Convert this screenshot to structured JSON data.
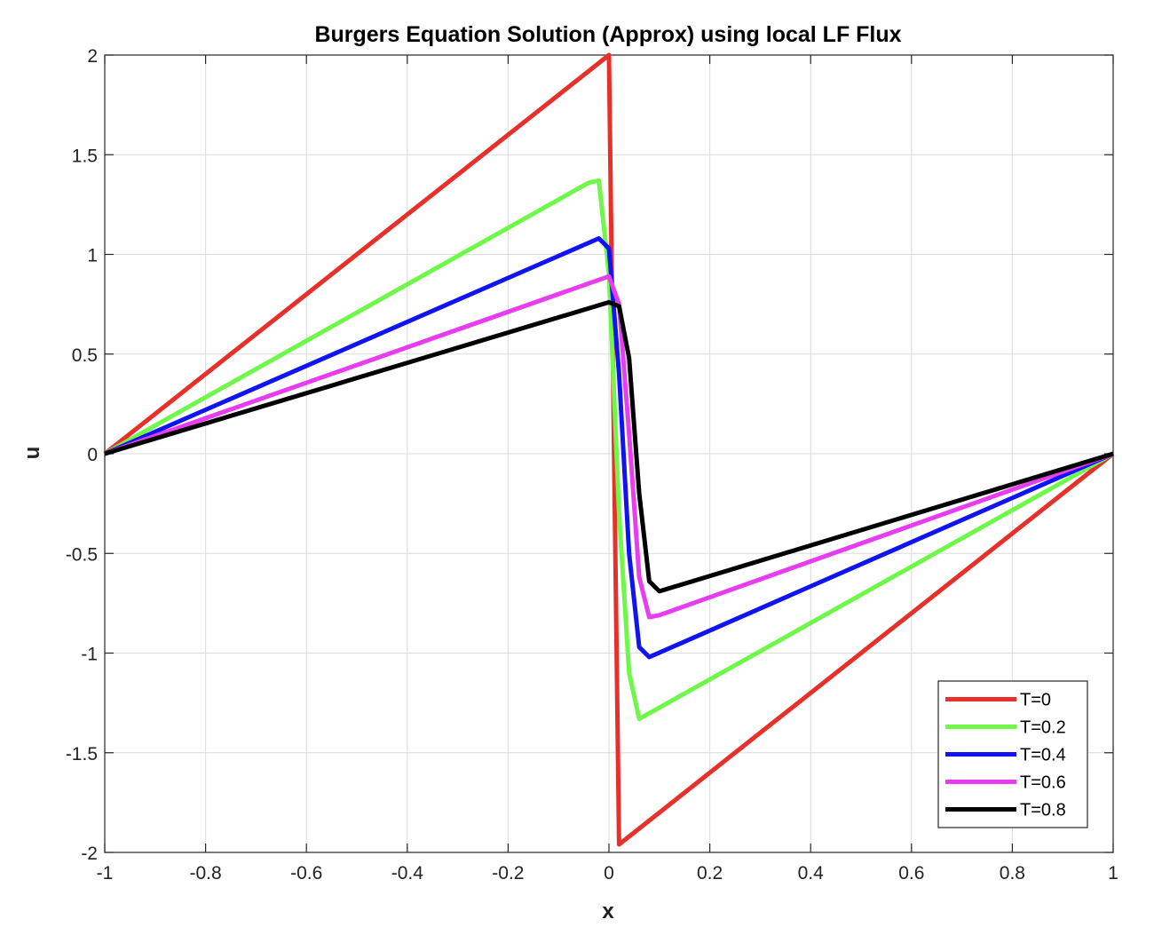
{
  "chart_data": {
    "type": "line",
    "title": "Burgers Equation Solution (Approx) using local LF Flux",
    "xlabel": "x",
    "ylabel": "u",
    "xlim": [
      -1,
      1
    ],
    "ylim": [
      -2,
      2
    ],
    "xticks": [
      -1,
      -0.8,
      -0.6,
      -0.4,
      -0.2,
      0,
      0.2,
      0.4,
      0.6,
      0.8,
      1
    ],
    "xtick_labels": [
      "-1",
      "-0.8",
      "-0.6",
      "-0.4",
      "-0.2",
      "0",
      "0.2",
      "0.4",
      "0.6",
      "0.8",
      "1"
    ],
    "yticks": [
      -2,
      -1.5,
      -1,
      -0.5,
      0,
      0.5,
      1,
      1.5,
      2
    ],
    "ytick_labels": [
      "-2",
      "-1.5",
      "-1",
      "-0.5",
      "0",
      "0.5",
      "1",
      "1.5",
      "2"
    ],
    "grid": true,
    "legend_position": "bottom-right",
    "series": [
      {
        "name": "T=0",
        "color": "#e8302a",
        "x": [
          -1,
          0,
          0.02,
          1
        ],
        "y": [
          0,
          2,
          -1.96,
          0
        ]
      },
      {
        "name": "T=0.2",
        "color": "#6ef84a",
        "x": [
          -1,
          -0.04,
          -0.02,
          0,
          0.02,
          0.04,
          0.06,
          1
        ],
        "y": [
          0,
          1.36,
          1.37,
          0.9,
          -0.3,
          -1.1,
          -1.33,
          0
        ]
      },
      {
        "name": "T=0.4",
        "color": "#0f14f0",
        "x": [
          -1,
          -0.02,
          0,
          0.02,
          0.04,
          0.06,
          0.08,
          1
        ],
        "y": [
          0,
          1.08,
          1.03,
          0.4,
          -0.5,
          -0.97,
          -1.02,
          0
        ]
      },
      {
        "name": "T=0.6",
        "color": "#e83cf0",
        "x": [
          -1,
          0,
          0.02,
          0.04,
          0.06,
          0.08,
          0.1,
          1
        ],
        "y": [
          0,
          0.89,
          0.75,
          0.1,
          -0.62,
          -0.82,
          -0.81,
          0
        ]
      },
      {
        "name": "T=0.8",
        "color": "#000000",
        "x": [
          -1,
          0,
          0.02,
          0.04,
          0.06,
          0.08,
          0.1,
          1
        ],
        "y": [
          0,
          0.76,
          0.74,
          0.48,
          -0.2,
          -0.64,
          -0.69,
          0
        ]
      }
    ]
  }
}
